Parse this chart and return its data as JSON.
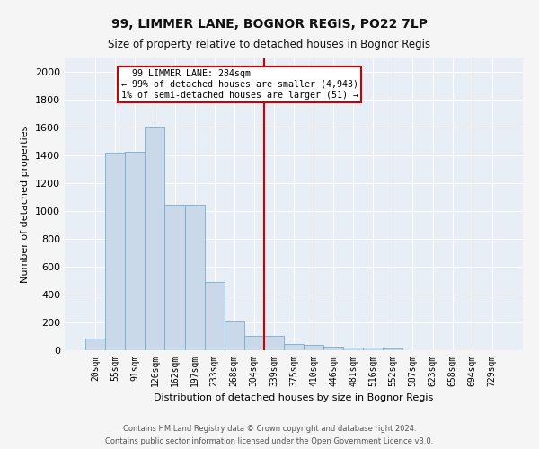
{
  "title": "99, LIMMER LANE, BOGNOR REGIS, PO22 7LP",
  "subtitle": "Size of property relative to detached houses in Bognor Regis",
  "xlabel": "Distribution of detached houses by size in Bognor Regis",
  "ylabel": "Number of detached properties",
  "footnote1": "Contains HM Land Registry data © Crown copyright and database right 2024.",
  "footnote2": "Contains public sector information licensed under the Open Government Licence v3.0.",
  "bar_labels": [
    "20sqm",
    "55sqm",
    "91sqm",
    "126sqm",
    "162sqm",
    "197sqm",
    "233sqm",
    "268sqm",
    "304sqm",
    "339sqm",
    "375sqm",
    "410sqm",
    "446sqm",
    "481sqm",
    "516sqm",
    "552sqm",
    "587sqm",
    "623sqm",
    "658sqm",
    "694sqm",
    "729sqm"
  ],
  "bar_values": [
    85,
    1420,
    1425,
    1610,
    1050,
    1050,
    490,
    205,
    105,
    105,
    45,
    40,
    25,
    20,
    18,
    12,
    0,
    0,
    0,
    0,
    0
  ],
  "bar_color": "#c9d9ea",
  "bar_edge_color": "#7aaac8",
  "bg_color": "#e8eef5",
  "grid_color": "#ffffff",
  "vline_x_index": 8.5,
  "vline_color": "#cc0000",
  "annotation_title": "99 LIMMER LANE: 284sqm",
  "annotation_line1": "← 99% of detached houses are smaller (4,943)",
  "annotation_line2": "1% of semi-detached houses are larger (51) →",
  "annotation_box_facecolor": "#ffffff",
  "annotation_box_edgecolor": "#cc0000",
  "ylim": [
    0,
    2100
  ],
  "yticks": [
    0,
    200,
    400,
    600,
    800,
    1000,
    1200,
    1400,
    1600,
    1800,
    2000
  ],
  "fig_facecolor": "#f5f5f5",
  "title_fontsize": 10,
  "subtitle_fontsize": 8.5,
  "ylabel_fontsize": 8,
  "xlabel_fontsize": 8,
  "tick_fontsize": 7,
  "footnote_fontsize": 6,
  "footnote_color": "#555555"
}
